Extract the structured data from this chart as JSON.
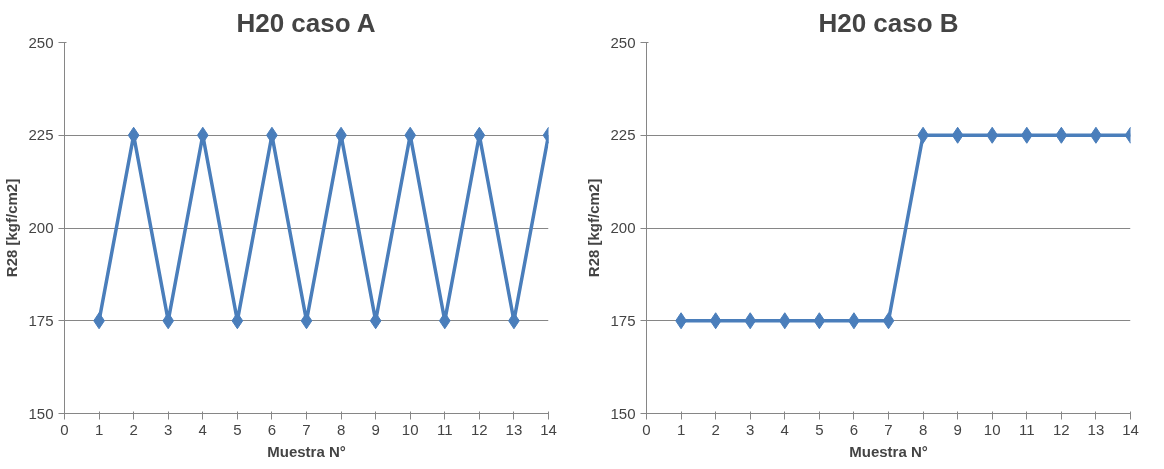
{
  "chart_data": [
    {
      "type": "line",
      "title": "H20 caso A",
      "xlabel": "Muestra N°",
      "ylabel": "R28 [kgf/cm2]",
      "x": [
        1,
        2,
        3,
        4,
        5,
        6,
        7,
        8,
        9,
        10,
        11,
        12,
        13,
        14
      ],
      "series": [
        {
          "color": "#4a7ebb",
          "values": [
            175,
            225,
            175,
            225,
            175,
            225,
            175,
            225,
            175,
            225,
            175,
            225,
            175,
            225
          ]
        }
      ],
      "xlim": [
        0,
        14
      ],
      "xticks": [
        0,
        1,
        2,
        3,
        4,
        5,
        6,
        7,
        8,
        9,
        10,
        11,
        12,
        13,
        14
      ],
      "ylim": [
        150,
        250
      ],
      "yticks": [
        150,
        175,
        200,
        225,
        250
      ],
      "grid": "y",
      "marker": "diamond",
      "line_style": "solid"
    },
    {
      "type": "line",
      "title": "H20 caso B",
      "xlabel": "Muestra N°",
      "ylabel": "R28 [kgf/cm2]",
      "x": [
        1,
        2,
        3,
        4,
        5,
        6,
        7,
        8,
        9,
        10,
        11,
        12,
        13,
        14
      ],
      "series": [
        {
          "color": "#4a7ebb",
          "values": [
            175,
            175,
            175,
            175,
            175,
            175,
            175,
            225,
            225,
            225,
            225,
            225,
            225,
            225
          ]
        }
      ],
      "xlim": [
        0,
        14
      ],
      "xticks": [
        0,
        1,
        2,
        3,
        4,
        5,
        6,
        7,
        8,
        9,
        10,
        11,
        12,
        13,
        14
      ],
      "ylim": [
        150,
        250
      ],
      "yticks": [
        150,
        175,
        200,
        225,
        250
      ],
      "grid": "y",
      "marker": "diamond",
      "line_style": "solid"
    }
  ]
}
